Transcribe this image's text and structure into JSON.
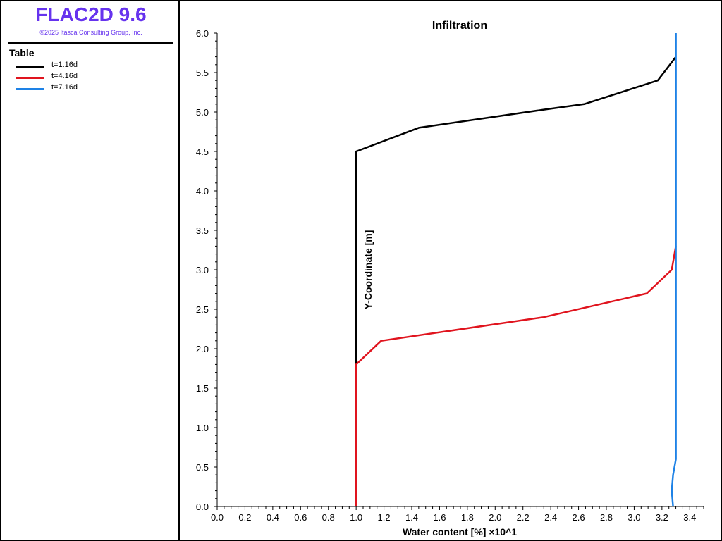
{
  "app": {
    "title": "FLAC2D 9.6",
    "copyright": "©2025 Itasca Consulting Group, Inc."
  },
  "legend": {
    "heading": "Table",
    "items": [
      {
        "label": "t=1.16d",
        "color": "#000000"
      },
      {
        "label": "t=4.16d",
        "color": "#e0141e"
      },
      {
        "label": "t=7.16d",
        "color": "#1e82e6"
      }
    ]
  },
  "chart_data": {
    "type": "line",
    "title": "Infiltration",
    "xlabel": "Water content [%] ×10^1",
    "ylabel": "Y-Coordinate [m]",
    "xlim": [
      0,
      3.5
    ],
    "ylim": [
      0,
      6
    ],
    "xticks": [
      "0.0",
      "0.2",
      "0.4",
      "0.6",
      "0.8",
      "1.0",
      "1.2",
      "1.4",
      "1.6",
      "1.8",
      "2.0",
      "2.2",
      "2.4",
      "2.6",
      "2.8",
      "3.0",
      "3.2",
      "3.4"
    ],
    "yticks": [
      "0.0",
      "0.5",
      "1.0",
      "1.5",
      "2.0",
      "2.5",
      "3.0",
      "3.5",
      "4.0",
      "4.5",
      "5.0",
      "5.5",
      "6.0"
    ],
    "grid": false,
    "series": [
      {
        "name": "t=1.16d",
        "color": "#000000",
        "x": [
          1.0,
          1.0,
          1.45,
          2.35,
          2.64,
          3.17,
          3.3
        ],
        "y": [
          1.8,
          4.5,
          4.8,
          5.03,
          5.1,
          5.4,
          5.7
        ]
      },
      {
        "name": "t=4.16d",
        "color": "#e0141e",
        "x": [
          1.0,
          1.0,
          1.18,
          2.35,
          3.09,
          3.27,
          3.3
        ],
        "y": [
          0.0,
          1.8,
          2.1,
          2.4,
          2.7,
          3.0,
          3.3
        ]
      },
      {
        "name": "t=7.16d",
        "color": "#1e82e6",
        "x": [
          3.28,
          3.27,
          3.28,
          3.3,
          3.3
        ],
        "y": [
          0.0,
          0.2,
          0.4,
          0.6,
          6.0
        ]
      }
    ]
  }
}
